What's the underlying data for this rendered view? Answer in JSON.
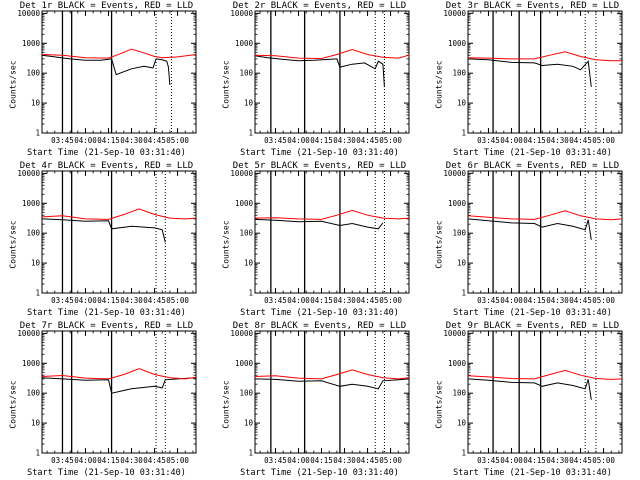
{
  "chart_data": [
    {
      "type": "line",
      "title": "Det 1r BLACK = Events, RED = LLD",
      "xlabel": "Start Time (21-Sep-10 03:31:40)",
      "ylabel": "Counts/sec",
      "xlim": [
        "03:31:40",
        "05:12:00"
      ],
      "ylim": [
        1,
        12000
      ],
      "y_scale": "log",
      "y_ticks": [
        "1",
        "10",
        "100",
        "1000",
        "10000"
      ],
      "x_ticks": [
        "03:45",
        "04:00",
        "04:15",
        "04:30",
        "04:45",
        "05:00"
      ],
      "series": [
        {
          "color": "#000000",
          "x": [
            "03:31:40",
            "03:40",
            "03:50",
            "04:00",
            "04:10",
            "04:17",
            "04:20",
            "04:30",
            "04:38",
            "04:44",
            "04:46",
            "04:50",
            "04:53",
            "04:54",
            "04:55"
          ],
          "values": [
            400,
            350,
            300,
            270,
            270,
            300,
            90,
            140,
            170,
            150,
            300,
            280,
            250,
            160,
            40
          ]
        },
        {
          "color": "#ff0000",
          "x": [
            "03:31:40",
            "03:45",
            "04:00",
            "04:15",
            "04:22",
            "04:30",
            "04:38",
            "04:45",
            "04:50",
            "05:00",
            "05:12"
          ],
          "values": [
            420,
            400,
            330,
            320,
            430,
            640,
            480,
            360,
            330,
            350,
            420
          ]
        }
      ],
      "solid_vlines": [
        "03:45",
        "03:51",
        "04:17"
      ],
      "dotted_vlines": [
        "04:46",
        "04:56"
      ]
    },
    {
      "type": "line",
      "title": "Det 2r BLACK = Events, RED = LLD",
      "xlabel": "Start Time (21-Sep-10 03:31:40)",
      "ylabel": "Counts/sec",
      "xlim": [
        "03:31:40",
        "05:12:00"
      ],
      "ylim": [
        1,
        12000
      ],
      "y_scale": "log",
      "y_ticks": [
        "1",
        "10",
        "100",
        "1000",
        "10000"
      ],
      "x_ticks": [
        "03:45",
        "04:00",
        "04:15",
        "04:30",
        "04:45",
        "05:00"
      ],
      "series": [
        {
          "color": "#000000",
          "x": [
            "03:31:40",
            "03:40",
            "03:50",
            "04:00",
            "04:10",
            "04:25",
            "04:27",
            "04:35",
            "04:43",
            "04:50",
            "04:52",
            "04:55",
            "04:56"
          ],
          "values": [
            380,
            330,
            290,
            260,
            270,
            300,
            160,
            200,
            220,
            140,
            250,
            200,
            35
          ]
        },
        {
          "color": "#ff0000",
          "x": [
            "03:31:40",
            "03:45",
            "04:00",
            "04:15",
            "04:25",
            "04:35",
            "04:45",
            "04:55",
            "05:05",
            "05:12"
          ],
          "values": [
            400,
            380,
            320,
            310,
            420,
            620,
            420,
            340,
            320,
            400
          ]
        }
      ],
      "solid_vlines": [
        "03:42",
        "04:04",
        "04:27"
      ],
      "dotted_vlines": [
        "04:50",
        "04:56"
      ]
    },
    {
      "type": "line",
      "title": "Det 3r BLACK = Events, RED = LLD",
      "xlabel": "Start Time (21-Sep-10 03:31:40)",
      "ylabel": "Counts/sec",
      "xlim": [
        "03:31:40",
        "05:12:00"
      ],
      "ylim": [
        1,
        12000
      ],
      "y_scale": "log",
      "y_ticks": [
        "1",
        "10",
        "100",
        "1000",
        "10000"
      ],
      "x_ticks": [
        "03:45",
        "04:00",
        "04:15",
        "04:30",
        "04:45",
        "05:00"
      ],
      "series": [
        {
          "color": "#000000",
          "x": [
            "03:31:40",
            "03:45",
            "04:00",
            "04:15",
            "04:20",
            "04:30",
            "04:40",
            "04:45",
            "04:50",
            "04:52"
          ],
          "values": [
            300,
            280,
            230,
            220,
            180,
            200,
            170,
            130,
            250,
            35
          ]
        },
        {
          "color": "#ff0000",
          "x": [
            "03:31:40",
            "03:45",
            "04:00",
            "04:15",
            "04:25",
            "04:35",
            "04:45",
            "04:55",
            "05:05",
            "05:12"
          ],
          "values": [
            330,
            320,
            300,
            300,
            400,
            520,
            360,
            280,
            260,
            260
          ]
        }
      ],
      "solid_vlines": [
        "03:48",
        "04:05",
        "04:19"
      ],
      "dotted_vlines": [
        "04:48",
        "04:55"
      ]
    },
    {
      "type": "line",
      "title": "Det 4r BLACK = Events, RED = LLD",
      "xlabel": "Start Time (21-Sep-10 03:31:40)",
      "ylabel": "Counts/sec",
      "xlim": [
        "03:31:40",
        "05:12:00"
      ],
      "ylim": [
        1,
        12000
      ],
      "y_scale": "log",
      "y_ticks": [
        "1",
        "10",
        "100",
        "1000",
        "10000"
      ],
      "x_ticks": [
        "03:45",
        "04:00",
        "04:15",
        "04:30",
        "04:45",
        "05:00"
      ],
      "series": [
        {
          "color": "#000000",
          "x": [
            "03:31:40",
            "03:45",
            "04:00",
            "04:15",
            "04:17",
            "04:30",
            "04:45",
            "04:50",
            "04:52"
          ],
          "values": [
            300,
            280,
            250,
            260,
            140,
            170,
            150,
            130,
            50
          ]
        },
        {
          "color": "#ff0000",
          "x": [
            "03:31:40",
            "03:45",
            "04:00",
            "04:15",
            "04:25",
            "04:35",
            "04:45",
            "04:55",
            "05:05",
            "05:12"
          ],
          "values": [
            350,
            380,
            300,
            290,
            420,
            650,
            420,
            320,
            300,
            320
          ]
        }
      ],
      "solid_vlines": [
        "03:45",
        "03:51",
        "04:17"
      ],
      "dotted_vlines": [
        "04:46",
        "04:52"
      ]
    },
    {
      "type": "line",
      "title": "Det 5r BLACK = Events, RED = LLD",
      "xlabel": "Start Time (21-Sep-10 03:31:40)",
      "ylabel": "Counts/sec",
      "xlim": [
        "03:31:40",
        "05:12:00"
      ],
      "ylim": [
        1,
        12000
      ],
      "y_scale": "log",
      "y_ticks": [
        "1",
        "10",
        "100",
        "1000",
        "10000"
      ],
      "x_ticks": [
        "03:45",
        "04:00",
        "04:15",
        "04:30",
        "04:45",
        "05:00"
      ],
      "series": [
        {
          "color": "#000000",
          "x": [
            "03:31:40",
            "03:45",
            "04:00",
            "04:15",
            "04:27",
            "04:35",
            "04:45",
            "04:52",
            "04:55"
          ],
          "values": [
            290,
            270,
            240,
            250,
            180,
            210,
            160,
            140,
            220
          ]
        },
        {
          "color": "#ff0000",
          "x": [
            "03:31:40",
            "03:45",
            "04:00",
            "04:15",
            "04:25",
            "04:35",
            "04:45",
            "04:55",
            "05:05",
            "05:12"
          ],
          "values": [
            320,
            330,
            300,
            290,
            400,
            580,
            400,
            320,
            300,
            320
          ]
        }
      ],
      "solid_vlines": [
        "03:42",
        "04:04",
        "04:27"
      ],
      "dotted_vlines": [
        "04:50",
        "04:56"
      ]
    },
    {
      "type": "line",
      "title": "Det 6r BLACK = Events, RED = LLD",
      "xlabel": "Start Time (21-Sep-10 03:31:40)",
      "ylabel": "Counts/sec",
      "xlim": [
        "03:31:40",
        "05:12:00"
      ],
      "ylim": [
        1,
        12000
      ],
      "y_scale": "log",
      "y_ticks": [
        "1",
        "10",
        "100",
        "1000",
        "10000"
      ],
      "x_ticks": [
        "03:45",
        "04:00",
        "04:15",
        "04:30",
        "04:45",
        "05:00"
      ],
      "series": [
        {
          "color": "#000000",
          "x": [
            "03:31:40",
            "03:45",
            "04:00",
            "04:15",
            "04:20",
            "04:30",
            "04:40",
            "04:48",
            "04:50",
            "04:52"
          ],
          "values": [
            300,
            260,
            220,
            210,
            160,
            210,
            170,
            130,
            280,
            60
          ]
        },
        {
          "color": "#ff0000",
          "x": [
            "03:31:40",
            "03:45",
            "04:00",
            "04:15",
            "04:25",
            "04:35",
            "04:45",
            "04:55",
            "05:05",
            "05:12"
          ],
          "values": [
            380,
            340,
            300,
            290,
            400,
            560,
            380,
            300,
            280,
            300
          ]
        }
      ],
      "solid_vlines": [
        "03:48",
        "04:05",
        "04:19"
      ],
      "dotted_vlines": [
        "04:48",
        "04:55"
      ]
    },
    {
      "type": "line",
      "title": "Det 7r BLACK = Events, RED = LLD",
      "xlabel": "Start Time (21-Sep-10 03:31:40)",
      "ylabel": "Counts/sec",
      "xlim": [
        "03:31:40",
        "05:12:00"
      ],
      "ylim": [
        1,
        12000
      ],
      "y_scale": "log",
      "y_ticks": [
        "1",
        "10",
        "100",
        "1000",
        "10000"
      ],
      "x_ticks": [
        "03:45",
        "04:00",
        "04:15",
        "04:30",
        "04:45",
        "05:00"
      ],
      "series": [
        {
          "color": "#000000",
          "x": [
            "03:31:40",
            "03:45",
            "04:00",
            "04:15",
            "04:17",
            "04:30",
            "04:45",
            "04:50",
            "04:52",
            "05:00",
            "05:12"
          ],
          "values": [
            330,
            300,
            270,
            280,
            100,
            140,
            170,
            150,
            280,
            300,
            330
          ]
        },
        {
          "color": "#ff0000",
          "x": [
            "03:31:40",
            "03:45",
            "04:00",
            "04:15",
            "04:25",
            "04:35",
            "04:45",
            "04:55",
            "05:05",
            "05:12"
          ],
          "values": [
            360,
            390,
            320,
            300,
            420,
            660,
            420,
            330,
            300,
            340
          ]
        }
      ],
      "solid_vlines": [
        "03:45",
        "03:51",
        "04:17"
      ],
      "dotted_vlines": [
        "04:46",
        "04:52"
      ]
    },
    {
      "type": "line",
      "title": "Det 8r BLACK = Events, RED = LLD",
      "xlabel": "Start Time (21-Sep-10 03:31:40)",
      "ylabel": "Counts/sec",
      "xlim": [
        "03:31:40",
        "05:12:00"
      ],
      "ylim": [
        1,
        12000
      ],
      "y_scale": "log",
      "y_ticks": [
        "1",
        "10",
        "100",
        "1000",
        "10000"
      ],
      "x_ticks": [
        "03:45",
        "04:00",
        "04:15",
        "04:30",
        "04:45",
        "05:00"
      ],
      "series": [
        {
          "color": "#000000",
          "x": [
            "03:31:40",
            "03:45",
            "04:00",
            "04:15",
            "04:27",
            "04:35",
            "04:45",
            "04:52",
            "04:55",
            "05:05",
            "05:12"
          ],
          "values": [
            300,
            290,
            250,
            260,
            170,
            200,
            170,
            140,
            260,
            280,
            300
          ]
        },
        {
          "color": "#ff0000",
          "x": [
            "03:31:40",
            "03:45",
            "04:00",
            "04:15",
            "04:25",
            "04:35",
            "04:45",
            "04:55",
            "05:05",
            "05:12"
          ],
          "values": [
            360,
            380,
            320,
            300,
            420,
            600,
            420,
            330,
            300,
            330
          ]
        }
      ],
      "solid_vlines": [
        "03:42",
        "04:04",
        "04:27"
      ],
      "dotted_vlines": [
        "04:50",
        "04:56"
      ]
    },
    {
      "type": "line",
      "title": "Det 9r BLACK = Events, RED = LLD",
      "xlabel": "Start Time (21-Sep-10 03:31:40)",
      "ylabel": "Counts/sec",
      "xlim": [
        "03:31:40",
        "05:12:00"
      ],
      "ylim": [
        1,
        12000
      ],
      "y_scale": "log",
      "y_ticks": [
        "1",
        "10",
        "100",
        "1000",
        "10000"
      ],
      "x_ticks": [
        "03:45",
        "04:00",
        "04:15",
        "04:30",
        "04:45",
        "05:00"
      ],
      "series": [
        {
          "color": "#000000",
          "x": [
            "03:31:40",
            "03:45",
            "04:00",
            "04:15",
            "04:20",
            "04:30",
            "04:40",
            "04:48",
            "04:50",
            "04:52"
          ],
          "values": [
            300,
            270,
            230,
            220,
            170,
            220,
            180,
            140,
            290,
            60
          ]
        },
        {
          "color": "#ff0000",
          "x": [
            "03:31:40",
            "03:45",
            "04:00",
            "04:15",
            "04:25",
            "04:35",
            "04:45",
            "04:55",
            "05:05",
            "05:12"
          ],
          "values": [
            380,
            350,
            310,
            300,
            420,
            580,
            400,
            310,
            290,
            300
          ]
        }
      ],
      "solid_vlines": [
        "03:48",
        "04:05",
        "04:19"
      ],
      "dotted_vlines": [
        "04:48",
        "04:55"
      ]
    }
  ]
}
